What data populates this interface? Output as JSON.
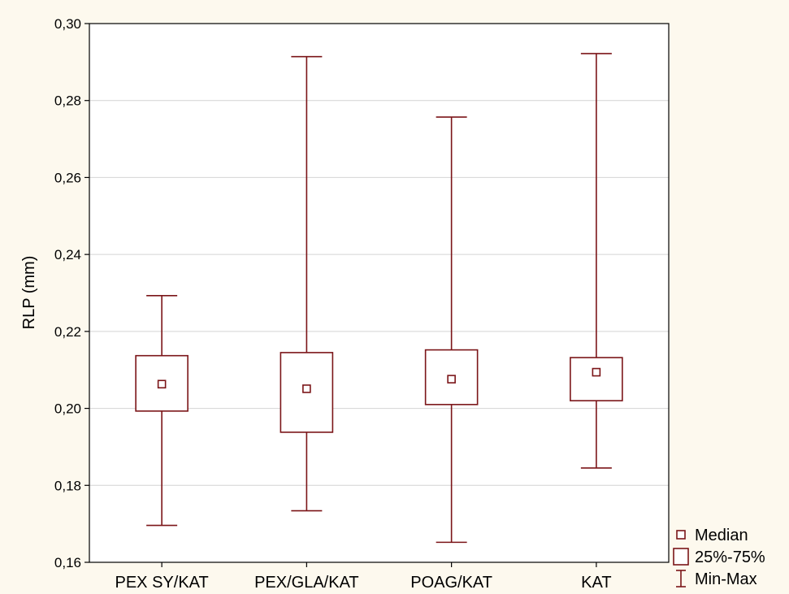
{
  "chart_data": {
    "type": "boxplot",
    "ylabel": "RLP (mm)",
    "xlabel": "",
    "ylim": [
      0.16,
      0.3
    ],
    "yticks": [
      0.16,
      0.18,
      0.2,
      0.22,
      0.24,
      0.26,
      0.28,
      0.3
    ],
    "ytick_labels": [
      "0,16",
      "0,18",
      "0,20",
      "0,22",
      "0,24",
      "0,26",
      "0,28",
      "0,30"
    ],
    "grid": true,
    "legend_position": "bottom-right",
    "categories": [
      "PEX SY/KAT",
      "PEX/GLA/KAT",
      "POAG/KAT",
      "KAT"
    ],
    "series": [
      {
        "category": "PEX SY/KAT",
        "min": 0.1696,
        "q1": 0.1993,
        "median": 0.2063,
        "q3": 0.2137,
        "max": 0.2293
      },
      {
        "category": "PEX/GLA/KAT",
        "min": 0.1734,
        "q1": 0.1938,
        "median": 0.2051,
        "q3": 0.2145,
        "max": 0.2914
      },
      {
        "category": "POAG/KAT",
        "min": 0.1652,
        "q1": 0.201,
        "median": 0.2076,
        "q3": 0.2152,
        "max": 0.2757
      },
      {
        "category": "KAT",
        "min": 0.1845,
        "q1": 0.202,
        "median": 0.2094,
        "q3": 0.2132,
        "max": 0.2922
      }
    ],
    "legend": [
      {
        "symbol": "median",
        "label": "Median"
      },
      {
        "symbol": "box",
        "label": "25%-75%"
      },
      {
        "symbol": "whisker",
        "label": "Min-Max"
      }
    ],
    "colors": {
      "box": "#7b1518",
      "grid": "#d4d4d4",
      "plot_bg": "#ffffff",
      "page_bg": "#fdf9ee"
    }
  }
}
